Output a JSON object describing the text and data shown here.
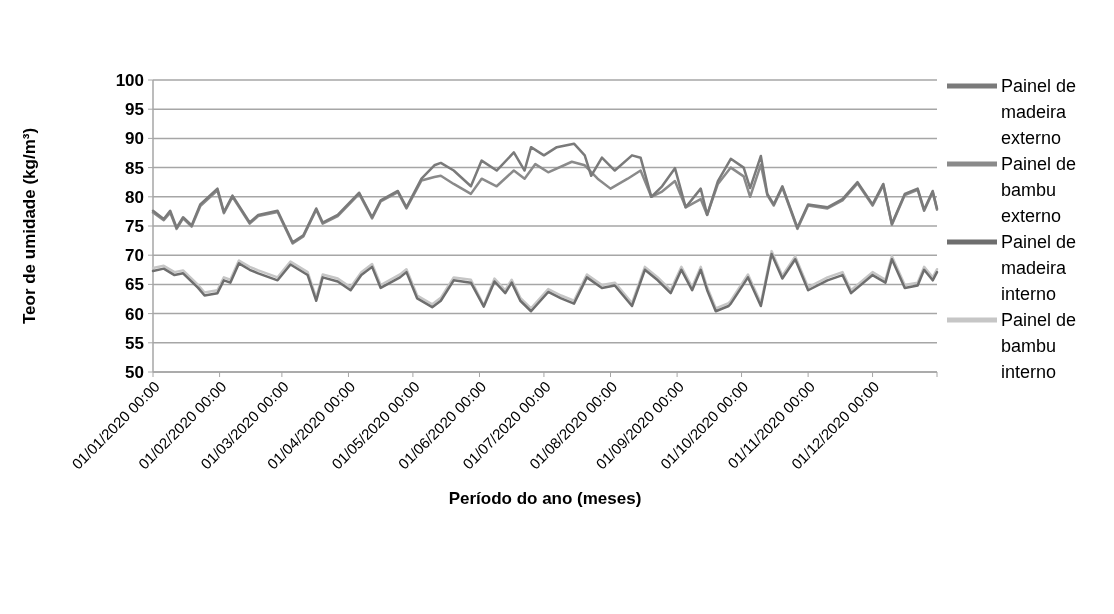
{
  "chart_data": {
    "type": "line",
    "xlabel": "Período do ano (meses)",
    "ylabel": "Teor de umidade (kg/m³)",
    "xlim": [
      "2020-01-01",
      "2020-12-31"
    ],
    "xticks": [
      {
        "value": "2020-01-01",
        "label": "01/01/2020 00:00"
      },
      {
        "value": "2020-02-01",
        "label": "01/02/2020 00:00"
      },
      {
        "value": "2020-03-01",
        "label": "01/03/2020 00:00"
      },
      {
        "value": "2020-04-01",
        "label": "01/04/2020 00:00"
      },
      {
        "value": "2020-05-01",
        "label": "01/05/2020 00:00"
      },
      {
        "value": "2020-06-01",
        "label": "01/06/2020 00:00"
      },
      {
        "value": "2020-07-01",
        "label": "01/07/2020 00:00"
      },
      {
        "value": "2020-08-01",
        "label": "01/08/2020 00:00"
      },
      {
        "value": "2020-09-01",
        "label": "01/09/2020 00:00"
      },
      {
        "value": "2020-10-01",
        "label": "01/10/2020 00:00"
      },
      {
        "value": "2020-11-01",
        "label": "01/11/2020 00:00"
      },
      {
        "value": "2020-12-01",
        "label": "01/12/2020 00:00"
      }
    ],
    "ylim": [
      50,
      100
    ],
    "yticks": [
      50,
      55,
      60,
      65,
      70,
      75,
      80,
      85,
      90,
      95,
      100
    ],
    "grid": "y",
    "legend": "right",
    "marker": "none",
    "line_style": "solid",
    "series": [
      {
        "name": "Painel de madeira externo",
        "color": "#7a7a7a",
        "x": [
          "2020-01-01",
          "2020-01-06",
          "2020-01-09",
          "2020-01-12",
          "2020-01-15",
          "2020-01-19",
          "2020-01-23",
          "2020-01-31",
          "2020-02-03",
          "2020-02-07",
          "2020-02-15",
          "2020-02-19",
          "2020-02-28",
          "2020-03-06",
          "2020-03-11",
          "2020-03-17",
          "2020-03-20",
          "2020-03-27",
          "2020-04-06",
          "2020-04-12",
          "2020-04-16",
          "2020-04-24",
          "2020-04-28",
          "2020-05-05",
          "2020-05-11",
          "2020-05-14",
          "2020-05-20",
          "2020-05-28",
          "2020-06-02",
          "2020-06-09",
          "2020-06-17",
          "2020-06-22",
          "2020-06-25",
          "2020-07-01",
          "2020-07-07",
          "2020-07-15",
          "2020-07-20",
          "2020-07-23",
          "2020-07-28",
          "2020-08-03",
          "2020-08-11",
          "2020-08-15",
          "2020-08-20",
          "2020-08-25",
          "2020-08-31",
          "2020-09-05",
          "2020-09-12",
          "2020-09-15",
          "2020-09-20",
          "2020-09-26",
          "2020-10-02",
          "2020-10-05",
          "2020-10-10",
          "2020-10-13",
          "2020-10-16",
          "2020-10-20",
          "2020-10-27",
          "2020-11-01",
          "2020-11-10",
          "2020-11-17",
          "2020-11-24",
          "2020-12-01",
          "2020-12-06",
          "2020-12-10",
          "2020-12-16",
          "2020-12-22",
          "2020-12-25",
          "2020-12-29",
          "2020-12-31"
        ],
        "values": [
          77.6,
          76.2,
          77.6,
          74.7,
          76.5,
          75.1,
          78.7,
          81.4,
          77.4,
          80.2,
          75.6,
          76.9,
          77.6,
          72.2,
          73.4,
          78.0,
          75.6,
          76.9,
          80.7,
          76.5,
          79.4,
          81.0,
          78.2,
          83.1,
          85.4,
          85.8,
          84.5,
          81.8,
          86.2,
          84.5,
          87.6,
          84.5,
          88.5,
          87.1,
          88.5,
          89.1,
          87.1,
          83.6,
          86.7,
          84.5,
          87.1,
          86.7,
          80.0,
          81.8,
          84.9,
          78.2,
          81.4,
          76.9,
          82.7,
          86.5,
          85.0,
          81.5,
          87.0,
          80.5,
          78.7,
          81.8,
          74.7,
          78.7,
          78.2,
          79.6,
          82.5,
          78.7,
          82.2,
          75.4,
          80.5,
          81.4,
          77.8,
          81.0,
          78.0
        ]
      },
      {
        "name": "Painel de bambu externo",
        "color": "#8a8a8a",
        "x": [
          "2020-01-01",
          "2020-01-06",
          "2020-01-09",
          "2020-01-12",
          "2020-01-15",
          "2020-01-19",
          "2020-01-23",
          "2020-01-31",
          "2020-02-03",
          "2020-02-07",
          "2020-02-15",
          "2020-02-19",
          "2020-02-28",
          "2020-03-06",
          "2020-03-11",
          "2020-03-17",
          "2020-03-20",
          "2020-03-27",
          "2020-04-06",
          "2020-04-12",
          "2020-04-16",
          "2020-04-24",
          "2020-04-28",
          "2020-05-05",
          "2020-05-11",
          "2020-05-14",
          "2020-05-20",
          "2020-05-28",
          "2020-06-02",
          "2020-06-09",
          "2020-06-17",
          "2020-06-22",
          "2020-06-27",
          "2020-07-03",
          "2020-07-14",
          "2020-07-20",
          "2020-07-26",
          "2020-08-01",
          "2020-08-09",
          "2020-08-15",
          "2020-08-20",
          "2020-08-25",
          "2020-08-31",
          "2020-09-05",
          "2020-09-12",
          "2020-09-15",
          "2020-09-20",
          "2020-09-26",
          "2020-10-02",
          "2020-10-05",
          "2020-10-10",
          "2020-10-13",
          "2020-10-16",
          "2020-10-20",
          "2020-10-27",
          "2020-11-01",
          "2020-11-10",
          "2020-11-17",
          "2020-11-24",
          "2020-12-01",
          "2020-12-06",
          "2020-12-10",
          "2020-12-16",
          "2020-12-22",
          "2020-12-25",
          "2020-12-29",
          "2020-12-31"
        ],
        "values": [
          77.3,
          76.0,
          77.3,
          74.5,
          76.3,
          74.9,
          78.4,
          81.1,
          77.2,
          80.0,
          75.4,
          76.7,
          77.4,
          72.0,
          73.2,
          77.8,
          75.4,
          76.7,
          80.5,
          76.3,
          79.2,
          80.8,
          78.0,
          82.8,
          83.4,
          83.6,
          82.2,
          80.5,
          83.1,
          81.8,
          84.5,
          83.1,
          85.6,
          84.2,
          86.0,
          85.4,
          83.1,
          81.4,
          83.1,
          84.5,
          80.0,
          80.9,
          82.7,
          78.2,
          79.6,
          76.9,
          82.2,
          85.0,
          83.5,
          80.0,
          85.5,
          80.3,
          78.5,
          81.6,
          74.5,
          78.5,
          78.0,
          79.4,
          82.3,
          78.5,
          82.0,
          75.2,
          80.3,
          81.2,
          77.6,
          80.8,
          77.8
        ]
      },
      {
        "name": "Painel de madeira interno",
        "color": "#6e6e6e",
        "x": [
          "2020-01-01",
          "2020-01-06",
          "2020-01-11",
          "2020-01-15",
          "2020-01-22",
          "2020-01-25",
          "2020-01-31",
          "2020-02-03",
          "2020-02-06",
          "2020-02-10",
          "2020-02-15",
          "2020-02-19",
          "2020-02-28",
          "2020-03-05",
          "2020-03-13",
          "2020-03-17",
          "2020-03-20",
          "2020-03-27",
          "2020-04-02",
          "2020-04-07",
          "2020-04-12",
          "2020-04-16",
          "2020-04-25",
          "2020-04-28",
          "2020-05-03",
          "2020-05-10",
          "2020-05-14",
          "2020-05-20",
          "2020-05-28",
          "2020-06-03",
          "2020-06-08",
          "2020-06-13",
          "2020-06-16",
          "2020-06-20",
          "2020-06-25",
          "2020-07-03",
          "2020-07-09",
          "2020-07-15",
          "2020-07-21",
          "2020-07-28",
          "2020-08-03",
          "2020-08-11",
          "2020-08-17",
          "2020-08-23",
          "2020-08-29",
          "2020-09-03",
          "2020-09-08",
          "2020-09-12",
          "2020-09-15",
          "2020-09-19",
          "2020-09-25",
          "2020-09-26",
          "2020-10-04",
          "2020-10-10",
          "2020-10-15",
          "2020-10-20",
          "2020-10-26",
          "2020-11-01",
          "2020-11-10",
          "2020-11-17",
          "2020-11-21",
          "2020-12-01",
          "2020-12-07",
          "2020-12-10",
          "2020-12-16",
          "2020-12-22",
          "2020-12-25",
          "2020-12-29",
          "2020-12-31"
        ],
        "values": [
          67.3,
          67.7,
          66.6,
          66.9,
          64.4,
          63.1,
          63.5,
          65.7,
          65.3,
          68.6,
          67.5,
          66.9,
          65.7,
          68.4,
          66.6,
          62.2,
          66.2,
          65.5,
          64.0,
          66.6,
          68.0,
          64.4,
          66.2,
          67.1,
          62.6,
          61.1,
          62.2,
          65.7,
          65.3,
          61.2,
          65.5,
          63.5,
          65.3,
          62.2,
          60.4,
          63.7,
          62.6,
          61.7,
          66.2,
          64.4,
          64.8,
          61.3,
          67.5,
          65.7,
          63.5,
          67.5,
          64.0,
          67.5,
          64.0,
          60.4,
          61.3,
          61.7,
          66.2,
          61.3,
          70.2,
          66.0,
          69.3,
          64.0,
          65.7,
          66.6,
          63.5,
          66.6,
          65.3,
          69.3,
          64.4,
          64.8,
          67.5,
          65.7,
          67.1
        ]
      },
      {
        "name": "Painel de bambu interno",
        "color": "#c6c6c6",
        "x": [
          "2020-01-01",
          "2020-01-06",
          "2020-01-11",
          "2020-01-15",
          "2020-01-22",
          "2020-01-25",
          "2020-01-31",
          "2020-02-03",
          "2020-02-06",
          "2020-02-10",
          "2020-02-15",
          "2020-02-19",
          "2020-02-28",
          "2020-03-05",
          "2020-03-13",
          "2020-03-17",
          "2020-03-20",
          "2020-03-27",
          "2020-04-02",
          "2020-04-07",
          "2020-04-12",
          "2020-04-16",
          "2020-04-25",
          "2020-04-28",
          "2020-05-03",
          "2020-05-10",
          "2020-05-14",
          "2020-05-20",
          "2020-05-28",
          "2020-06-03",
          "2020-06-08",
          "2020-06-13",
          "2020-06-16",
          "2020-06-20",
          "2020-06-25",
          "2020-07-03",
          "2020-07-09",
          "2020-07-15",
          "2020-07-21",
          "2020-07-28",
          "2020-08-03",
          "2020-08-11",
          "2020-08-17",
          "2020-08-23",
          "2020-08-29",
          "2020-09-03",
          "2020-09-08",
          "2020-09-12",
          "2020-09-15",
          "2020-09-19",
          "2020-09-25",
          "2020-09-26",
          "2020-10-04",
          "2020-10-10",
          "2020-10-15",
          "2020-10-20",
          "2020-10-26",
          "2020-11-01",
          "2020-11-10",
          "2020-11-17",
          "2020-11-21",
          "2020-12-01",
          "2020-12-07",
          "2020-12-10",
          "2020-12-16",
          "2020-12-22",
          "2020-12-25",
          "2020-12-29",
          "2020-12-31"
        ],
        "values": [
          67.8,
          68.2,
          67.1,
          67.4,
          64.9,
          63.6,
          64.0,
          66.2,
          65.8,
          69.1,
          68.0,
          67.4,
          66.2,
          68.9,
          67.1,
          62.7,
          66.7,
          66.0,
          64.5,
          67.1,
          68.5,
          64.9,
          66.7,
          67.6,
          63.1,
          61.6,
          62.7,
          66.2,
          65.8,
          61.4,
          66.0,
          64.0,
          65.8,
          62.7,
          60.9,
          64.2,
          63.1,
          62.2,
          66.7,
          64.9,
          65.3,
          61.8,
          68.0,
          66.2,
          64.0,
          68.0,
          64.5,
          68.0,
          64.5,
          60.9,
          61.8,
          62.2,
          66.7,
          61.8,
          70.7,
          66.5,
          69.8,
          64.5,
          66.2,
          67.1,
          64.0,
          67.1,
          65.8,
          69.8,
          64.9,
          65.3,
          68.0,
          66.2,
          67.6
        ]
      }
    ]
  }
}
